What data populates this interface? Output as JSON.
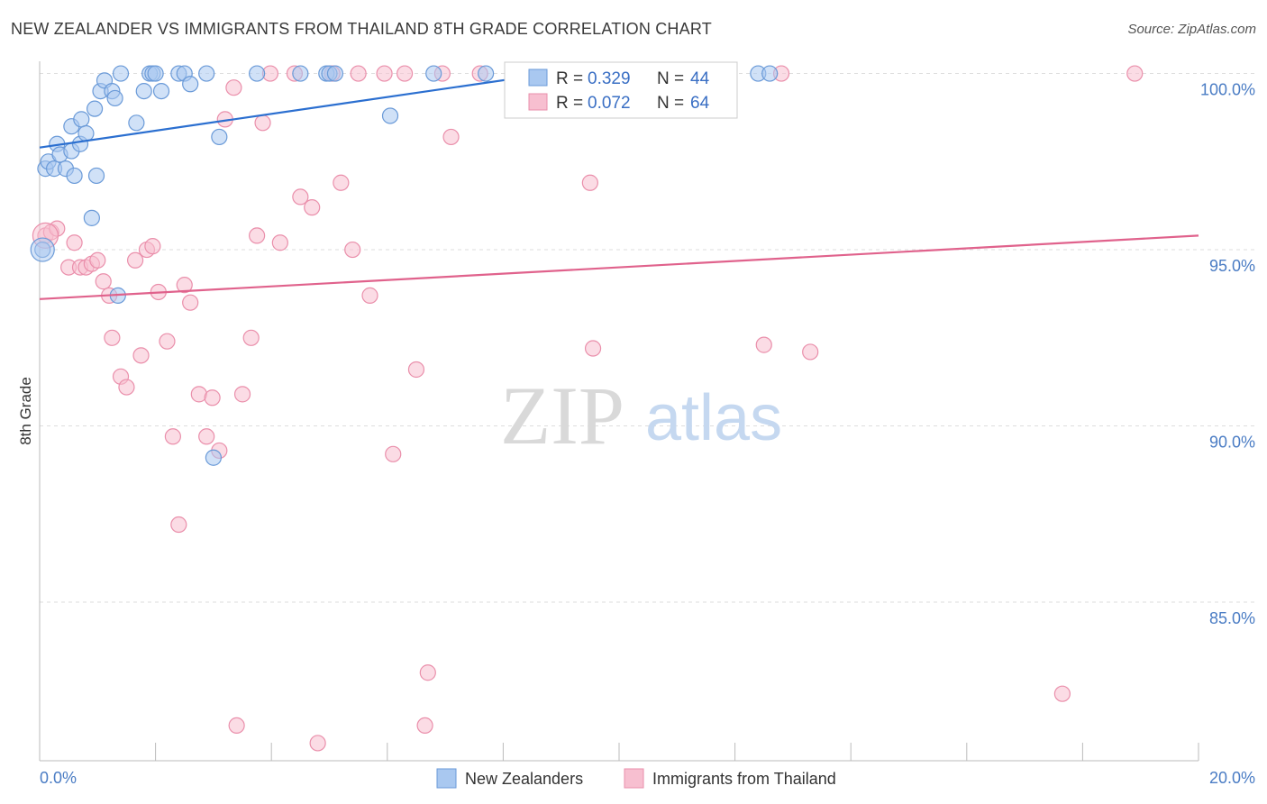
{
  "header": {
    "title": "NEW ZEALANDER VS IMMIGRANTS FROM THAILAND 8TH GRADE CORRELATION CHART",
    "source": "Source: ZipAtlas.com"
  },
  "watermark": {
    "zip": "ZIP",
    "atlas": "atlas"
  },
  "colors": {
    "blue_fill": "#a9c8f0",
    "blue_stroke": "#6a9ad8",
    "blue_line": "#2b6fd0",
    "pink_fill": "#f7bfd0",
    "pink_stroke": "#ea8fab",
    "pink_line": "#e0628c",
    "grid": "#dddddd",
    "tick_text": "#4a7cc4"
  },
  "legend": {
    "rows": [
      {
        "r_label": "R =",
        "r_value": "0.329",
        "n_label": "N =",
        "n_value": "44"
      },
      {
        "r_label": "R =",
        "r_value": "0.072",
        "n_label": "N =",
        "n_value": "64"
      }
    ]
  },
  "chart_data": {
    "type": "scatter",
    "title": "NEW ZEALANDER VS IMMIGRANTS FROM THAILAND 8TH GRADE CORRELATION CHART",
    "xlabel": "",
    "ylabel": "8th Grade",
    "xlim": [
      0,
      20
    ],
    "ylim": [
      80.5,
      100.5
    ],
    "x_tick_labels": [
      "0.0%",
      "20.0%"
    ],
    "y_ticks": [
      85,
      90,
      95,
      100
    ],
    "y_tick_labels": [
      "85.0%",
      "90.0%",
      "95.0%",
      "100.0%"
    ],
    "grid": true,
    "legend_position": "top-center",
    "series": [
      {
        "name": "New Zealanders",
        "r": 0.329,
        "n": 44,
        "trend": {
          "x0": 0,
          "y0": 97.9,
          "x1": 8.8,
          "y1": 100.0
        },
        "points": [
          [
            0.05,
            95.0
          ],
          [
            0.1,
            97.3
          ],
          [
            0.15,
            97.5
          ],
          [
            0.25,
            97.3
          ],
          [
            0.3,
            98.0
          ],
          [
            0.35,
            97.7
          ],
          [
            0.45,
            97.3
          ],
          [
            0.55,
            97.8
          ],
          [
            0.6,
            97.1
          ],
          [
            0.7,
            98.0
          ],
          [
            0.55,
            98.5
          ],
          [
            0.72,
            98.7
          ],
          [
            0.8,
            98.3
          ],
          [
            0.9,
            95.9
          ],
          [
            0.95,
            99.0
          ],
          [
            0.98,
            97.1
          ],
          [
            1.05,
            99.5
          ],
          [
            1.12,
            99.8
          ],
          [
            1.25,
            99.5
          ],
          [
            1.3,
            99.3
          ],
          [
            1.35,
            93.7
          ],
          [
            1.4,
            100.0
          ],
          [
            1.67,
            98.6
          ],
          [
            1.8,
            99.5
          ],
          [
            1.9,
            100.0
          ],
          [
            1.95,
            100.0
          ],
          [
            2.0,
            100.0
          ],
          [
            2.1,
            99.5
          ],
          [
            2.4,
            100.0
          ],
          [
            2.5,
            100.0
          ],
          [
            2.6,
            99.7
          ],
          [
            2.88,
            100.0
          ],
          [
            3.0,
            89.1
          ],
          [
            3.1,
            98.2
          ],
          [
            3.75,
            100.0
          ],
          [
            4.5,
            100.0
          ],
          [
            4.95,
            100.0
          ],
          [
            5.0,
            100.0
          ],
          [
            5.1,
            100.0
          ],
          [
            6.05,
            98.8
          ],
          [
            6.8,
            100.0
          ],
          [
            7.7,
            100.0
          ],
          [
            12.4,
            100.0
          ],
          [
            12.6,
            100.0
          ]
        ]
      },
      {
        "name": "Immigrants from Thailand",
        "r": 0.072,
        "n": 64,
        "trend": {
          "x0": 0,
          "y0": 93.6,
          "x1": 20,
          "y1": 95.4
        },
        "points": [
          [
            0.1,
            95.4
          ],
          [
            0.2,
            95.5
          ],
          [
            0.3,
            95.6
          ],
          [
            0.5,
            94.5
          ],
          [
            0.6,
            95.2
          ],
          [
            0.7,
            94.5
          ],
          [
            0.8,
            94.5
          ],
          [
            0.9,
            94.6
          ],
          [
            1.0,
            94.7
          ],
          [
            1.1,
            94.1
          ],
          [
            1.2,
            93.7
          ],
          [
            1.25,
            92.5
          ],
          [
            1.4,
            91.4
          ],
          [
            1.5,
            91.1
          ],
          [
            1.65,
            94.7
          ],
          [
            1.75,
            92.0
          ],
          [
            1.85,
            95.0
          ],
          [
            1.95,
            95.1
          ],
          [
            2.05,
            93.8
          ],
          [
            2.2,
            92.4
          ],
          [
            2.3,
            89.7
          ],
          [
            2.4,
            87.2
          ],
          [
            2.5,
            94.0
          ],
          [
            2.6,
            93.5
          ],
          [
            2.75,
            90.9
          ],
          [
            2.88,
            89.7
          ],
          [
            2.98,
            90.8
          ],
          [
            3.1,
            89.3
          ],
          [
            3.2,
            98.7
          ],
          [
            3.35,
            99.6
          ],
          [
            3.4,
            81.5
          ],
          [
            3.5,
            90.9
          ],
          [
            3.65,
            92.5
          ],
          [
            3.75,
            95.4
          ],
          [
            3.85,
            98.6
          ],
          [
            3.98,
            100.0
          ],
          [
            4.15,
            95.2
          ],
          [
            4.4,
            100.0
          ],
          [
            4.5,
            96.5
          ],
          [
            4.7,
            96.2
          ],
          [
            4.8,
            81.0
          ],
          [
            5.05,
            100.0
          ],
          [
            5.2,
            96.9
          ],
          [
            5.4,
            95.0
          ],
          [
            5.5,
            100.0
          ],
          [
            5.7,
            93.7
          ],
          [
            5.95,
            100.0
          ],
          [
            6.1,
            89.2
          ],
          [
            6.3,
            100.0
          ],
          [
            6.5,
            91.6
          ],
          [
            6.65,
            81.5
          ],
          [
            6.7,
            83.0
          ],
          [
            6.95,
            100.0
          ],
          [
            7.1,
            98.2
          ],
          [
            7.6,
            100.0
          ],
          [
            9.5,
            96.9
          ],
          [
            9.55,
            92.2
          ],
          [
            11.1,
            100.0
          ],
          [
            11.25,
            100.0
          ],
          [
            12.5,
            92.3
          ],
          [
            12.8,
            100.0
          ],
          [
            13.3,
            92.1
          ],
          [
            17.65,
            82.4
          ],
          [
            18.9,
            100.0
          ]
        ]
      }
    ]
  }
}
